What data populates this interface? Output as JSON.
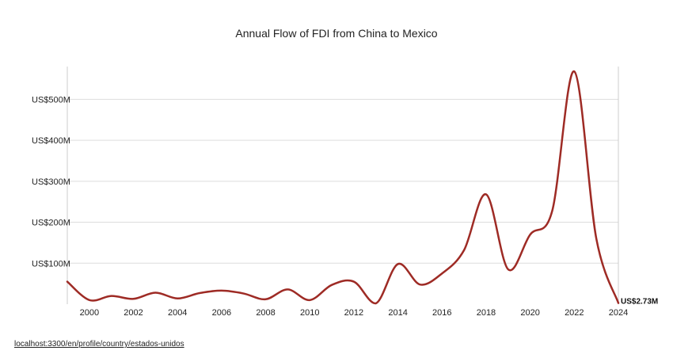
{
  "footer": {
    "url_text": "localhost:3300/en/profile/country/estados-unidos"
  },
  "chart_data": {
    "type": "line",
    "title": "Annual Flow of FDI from China to Mexico",
    "xlabel": "",
    "ylabel": "",
    "xlim": [
      1999,
      2024
    ],
    "ylim": [
      0,
      580
    ],
    "x_ticks": [
      2000,
      2002,
      2004,
      2006,
      2008,
      2010,
      2012,
      2014,
      2016,
      2018,
      2020,
      2022,
      2024
    ],
    "x_tick_labels": [
      "2000",
      "2002",
      "2004",
      "2006",
      "2008",
      "2010",
      "2012",
      "2014",
      "2016",
      "2018",
      "2020",
      "2022",
      "2024"
    ],
    "y_ticks": [
      100,
      200,
      300,
      400,
      500
    ],
    "y_tick_labels": [
      "US$100M",
      "US$200M",
      "US$300M",
      "US$400M",
      "US$500M"
    ],
    "grid": "horizontal",
    "line_color": "#9e2b25",
    "series": [
      {
        "x": [
          1999,
          2000,
          2001,
          2002,
          2003,
          2004,
          2005,
          2006,
          2007,
          2008,
          2009,
          2010,
          2011,
          2012,
          2013,
          2014,
          2015,
          2016,
          2017,
          2018,
          2019,
          2020,
          2021,
          2022,
          2023,
          2024
        ],
        "values": [
          55,
          10,
          20,
          13,
          28,
          14,
          27,
          33,
          26,
          12,
          36,
          10,
          47,
          55,
          2,
          98,
          48,
          75,
          132,
          268,
          85,
          170,
          228,
          568,
          160,
          2.73
        ]
      }
    ],
    "end_annotation": "US$2.73M"
  }
}
